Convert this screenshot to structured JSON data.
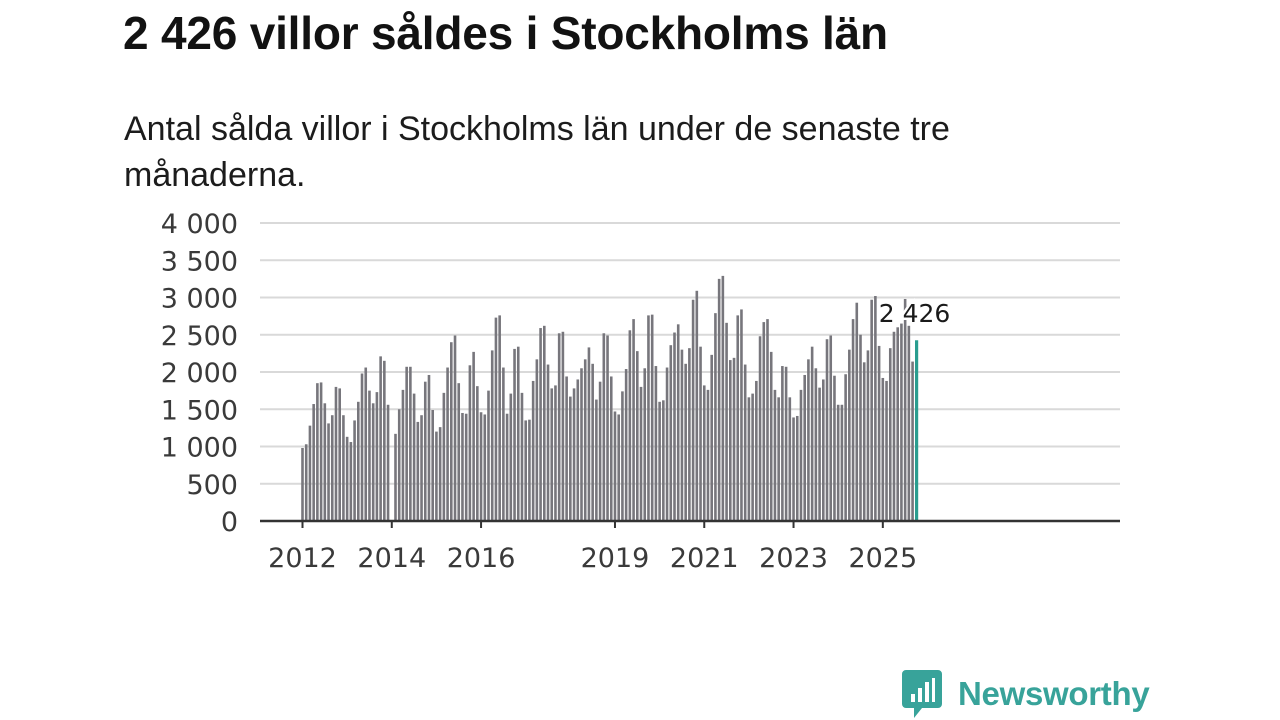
{
  "header": {
    "title": "2 426 villor såldes i Stockholms län",
    "subtitle": "Antal sålda villor i Stockholms län under de senaste tre månaderna."
  },
  "chart_data": {
    "type": "bar",
    "title": "2 426 villor såldes i Stockholms län",
    "subtitle": "Antal sålda villor i Stockholms län under de senaste tre månaderna.",
    "xlabel": "",
    "ylabel": "",
    "ylim": [
      0,
      4000
    ],
    "yticks": [
      0,
      500,
      1000,
      1500,
      2000,
      2500,
      3000,
      3500,
      4000
    ],
    "ytick_labels": [
      "0",
      "500",
      "1 000",
      "1 500",
      "2 000",
      "2 500",
      "3 000",
      "3 500",
      "4 000"
    ],
    "xtick_labels": [
      "2012",
      "2014",
      "2016",
      "2019",
      "2021",
      "2023",
      "2025"
    ],
    "xtick_years": [
      2012,
      2014,
      2016,
      2019,
      2021,
      2023,
      2025
    ],
    "start_year": 2012,
    "start_month": 1,
    "grid": true,
    "bar_color": "#77767c",
    "highlight_color": "#2a9d8f",
    "annotation": "2 426",
    "values": [
      980,
      1030,
      1280,
      1570,
      1850,
      1860,
      1580,
      1310,
      1420,
      1800,
      1780,
      1420,
      1130,
      1060,
      1350,
      1600,
      1980,
      2060,
      1750,
      1580,
      1730,
      2210,
      2150,
      1560,
      null,
      1170,
      1500,
      1760,
      2070,
      2070,
      1710,
      1330,
      1420,
      1870,
      1960,
      1490,
      1200,
      1260,
      1720,
      2060,
      2400,
      2490,
      1850,
      1450,
      1440,
      2090,
      2270,
      1810,
      1460,
      1430,
      1750,
      2290,
      2730,
      2760,
      2060,
      1440,
      1710,
      2310,
      2340,
      1720,
      1350,
      1360,
      1880,
      2170,
      2590,
      2620,
      2100,
      1780,
      1820,
      2520,
      2540,
      1940,
      1670,
      1780,
      1900,
      2050,
      2170,
      2330,
      2110,
      1630,
      1870,
      2520,
      2490,
      1940,
      1470,
      1430,
      1740,
      2040,
      2560,
      2710,
      2280,
      1800,
      2050,
      2760,
      2770,
      2080,
      1600,
      1620,
      2060,
      2360,
      2530,
      2640,
      2300,
      2110,
      2320,
      2970,
      3090,
      2340,
      1820,
      1760,
      2230,
      2790,
      3250,
      3290,
      2660,
      2160,
      2190,
      2760,
      2840,
      2100,
      1660,
      1710,
      1880,
      2480,
      2670,
      2710,
      2270,
      1760,
      1660,
      2080,
      2070,
      1660,
      1390,
      1410,
      1760,
      1960,
      2170,
      2340,
      2050,
      1790,
      1900,
      2440,
      2490,
      1950,
      1560,
      1560,
      1970,
      2300,
      2710,
      2930,
      2500,
      2130,
      2290,
      2970,
      3020,
      2350,
      1920,
      1880,
      2320,
      2540,
      2600,
      2650,
      2980,
      2620,
      2140,
      2426
    ]
  },
  "branding": {
    "logo_text": "Newsworthy",
    "logo_color": "#38a39a"
  }
}
